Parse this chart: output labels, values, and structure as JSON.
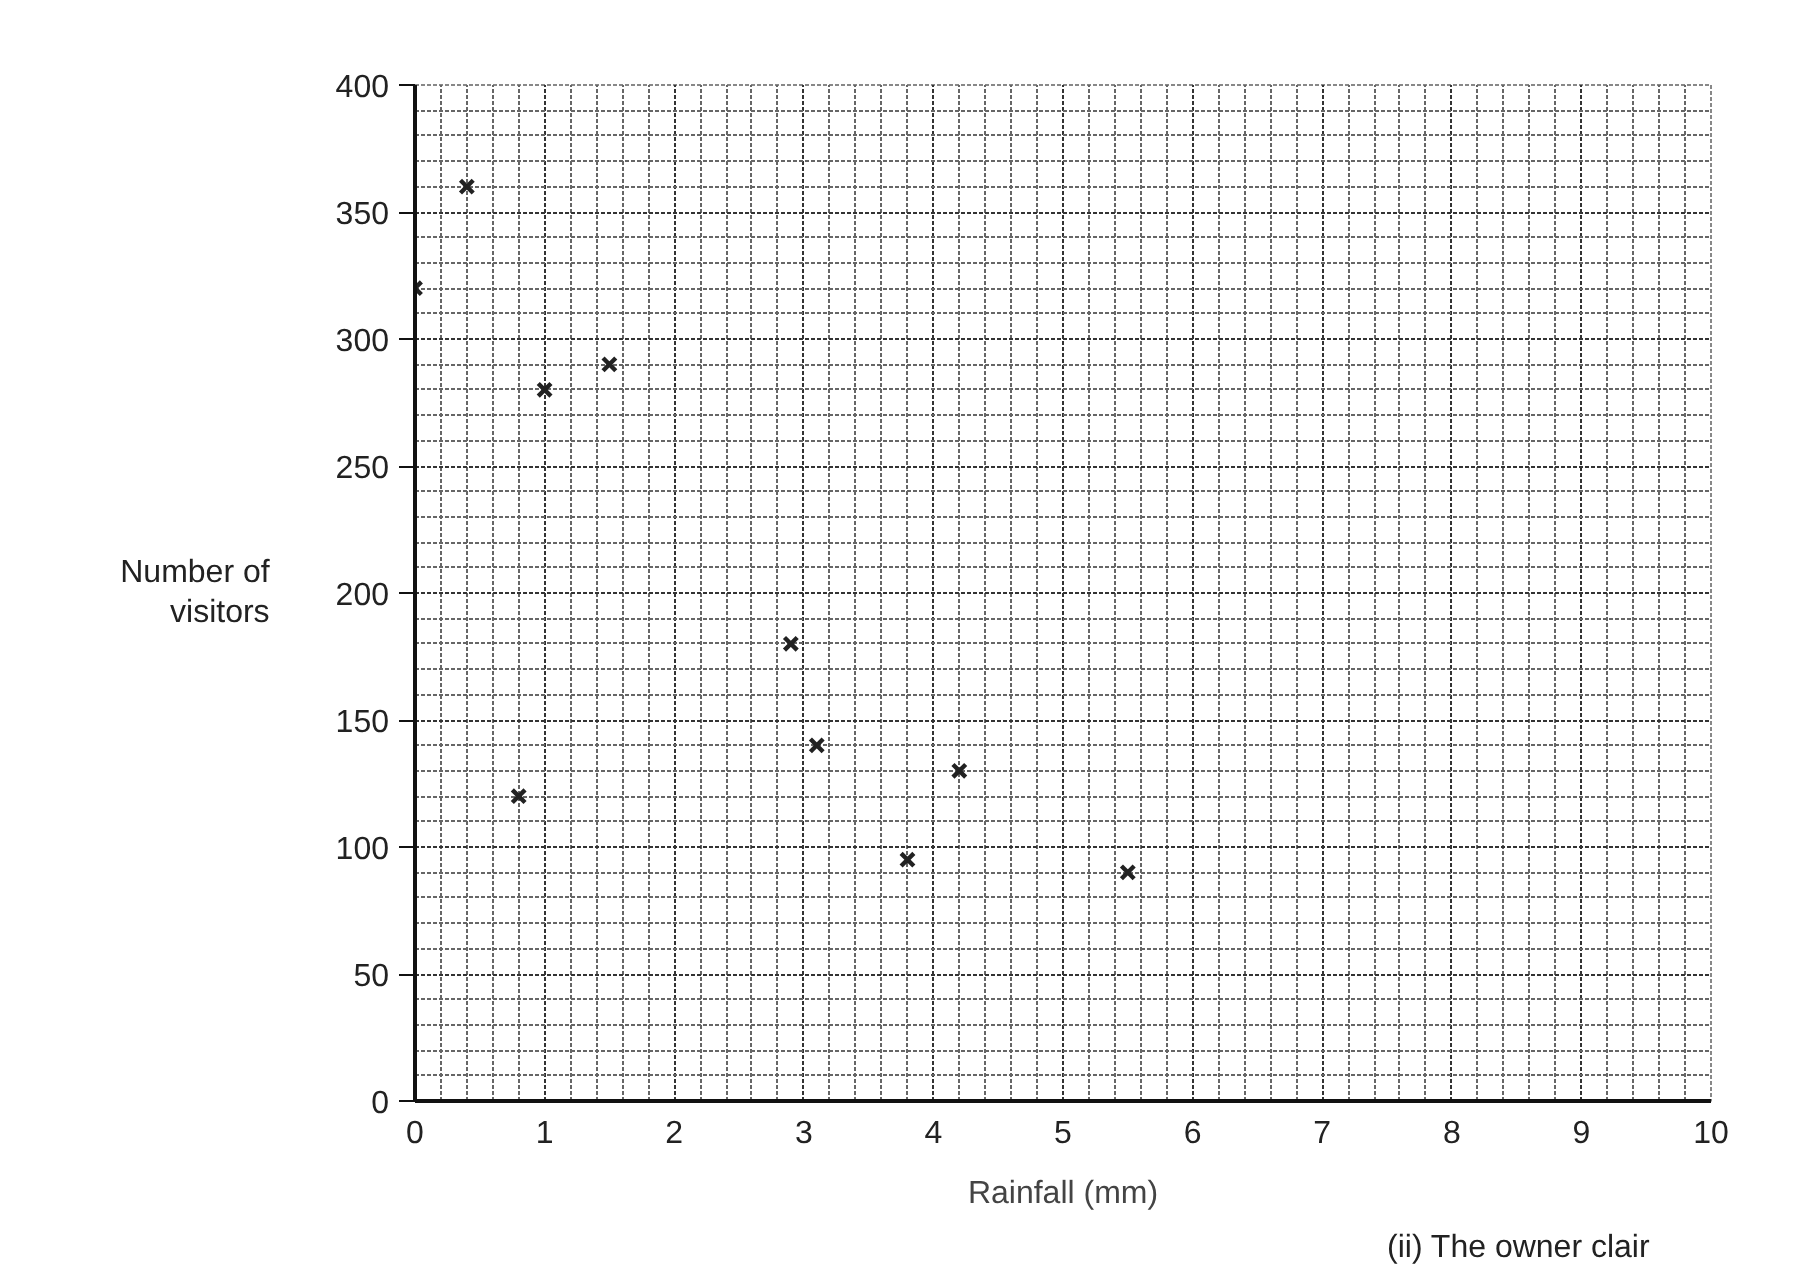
{
  "chart_data": {
    "type": "scatter",
    "xlabel": "Rainfall (mm)",
    "ylabel": "Number of visitors",
    "x": [
      0,
      0.4,
      0.8,
      1,
      1.5,
      2.9,
      3.1,
      3.8,
      4.2,
      5.5
    ],
    "values": [
      320,
      360,
      120,
      280,
      290,
      180,
      140,
      95,
      130,
      90
    ],
    "color": "#222222",
    "marker": "cross",
    "grid": true,
    "xlim": [
      0,
      10
    ],
    "ylim": [
      0,
      400
    ],
    "xticks": [
      0,
      1,
      2,
      3,
      4,
      5,
      6,
      7,
      8,
      9,
      10
    ],
    "yticks": [
      0,
      50,
      100,
      150,
      200,
      250,
      300,
      350,
      400
    ],
    "annotations": [
      "(ii)    The owner clair"
    ]
  }
}
